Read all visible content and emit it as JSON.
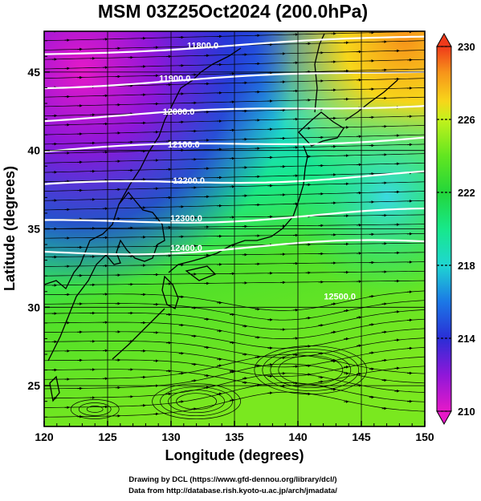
{
  "title": "MSM 03Z25Oct2024 (200.0hPa)",
  "xaxis": {
    "label": "Longitude (degrees)",
    "range": [
      120,
      150
    ],
    "ticks": [
      120,
      125,
      130,
      135,
      140,
      145,
      150
    ]
  },
  "yaxis": {
    "label": "Latitude  (degrees)",
    "range": [
      22.4,
      47.6
    ],
    "ticks": [
      25,
      30,
      35,
      40,
      45
    ]
  },
  "colorbar": {
    "range": [
      210,
      230
    ],
    "ticks": [
      210,
      214,
      218,
      222,
      226,
      230
    ],
    "colors": [
      "#e619c8",
      "#8f17d9",
      "#2a2ed6",
      "#1b78e6",
      "#1fd6d2",
      "#17e88a",
      "#23d63a",
      "#62e620",
      "#c4f21c",
      "#f7d61a",
      "#f7931a",
      "#ef3a1a"
    ]
  },
  "contours": [
    {
      "label": "11800.0",
      "lon": 132.5,
      "lat": 46.7
    },
    {
      "label": "11900.0",
      "lon": 130.3,
      "lat": 44.6
    },
    {
      "label": "12000.0",
      "lon": 130.6,
      "lat": 42.5
    },
    {
      "label": "12100.0",
      "lon": 131.0,
      "lat": 40.4
    },
    {
      "label": "12200.0",
      "lon": 131.4,
      "lat": 38.1
    },
    {
      "label": "12300.0",
      "lon": 131.2,
      "lat": 35.7
    },
    {
      "label": "12400.0",
      "lon": 131.2,
      "lat": 33.8
    },
    {
      "label": "12500.0",
      "lon": 143.3,
      "lat": 30.7
    }
  ],
  "credits": {
    "line1": "Drawing by DCL (https://www.gfd-dennou.org/library/dcl/)",
    "line2": "Data from http://database.rish.kyoto-u.ac.jp/arch/jmadata/"
  }
}
